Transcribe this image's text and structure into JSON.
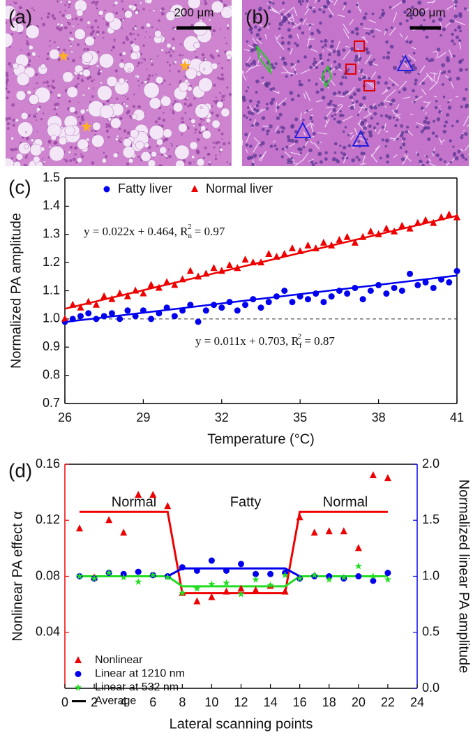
{
  "panels": [
    {
      "label": "(a)",
      "scale_bar": "200 μm"
    },
    {
      "label": "(b)",
      "scale_bar": "200 μm"
    }
  ],
  "chart_data": [
    {
      "type": "scatter",
      "panel_label": "(c)",
      "xlabel": "Temperature (°C)",
      "ylabel": "Normalized PA amplitude",
      "x": [
        26,
        26.3,
        26.6,
        26.9,
        27.2,
        27.5,
        27.8,
        28.1,
        28.4,
        28.7,
        29,
        29.3,
        29.6,
        29.9,
        30.2,
        30.5,
        30.8,
        31.1,
        31.4,
        31.7,
        32,
        32.3,
        32.6,
        32.9,
        33.2,
        33.5,
        33.8,
        34.1,
        34.4,
        34.7,
        35,
        35.3,
        35.6,
        35.9,
        36.2,
        36.5,
        36.8,
        37.1,
        37.4,
        37.7,
        38,
        38.3,
        38.6,
        38.9,
        39.2,
        39.5,
        39.8,
        40.1,
        40.4,
        40.7,
        41
      ],
      "xlim": [
        26,
        41
      ],
      "xticks": [
        26,
        29,
        32,
        35,
        38,
        41
      ],
      "ylim": [
        0.7,
        1.5
      ],
      "yticks": [
        0.7,
        0.8,
        0.9,
        {
          "value": 1,
          "label": "1.0"
        },
        1.1,
        1.2,
        1.3,
        1.4,
        1.5
      ],
      "reference_line": {
        "value": 1,
        "dashed": true
      },
      "legend": "top-left",
      "series": [
        {
          "name": "Fatty liver",
          "color": "#0000ee",
          "marker": "circle",
          "values": [
            0.99,
            1.0,
            1.01,
            1.02,
            1.0,
            1.01,
            1.02,
            1.0,
            1.03,
            1.01,
            1.03,
            1.0,
            1.02,
            1.04,
            1.01,
            1.03,
            1.05,
            0.99,
            1.03,
            1.05,
            1.04,
            1.06,
            1.03,
            1.05,
            1.07,
            1.04,
            1.06,
            1.08,
            1.1,
            1.06,
            1.08,
            1.07,
            1.09,
            1.06,
            1.08,
            1.1,
            1.09,
            1.11,
            1.07,
            1.1,
            1.12,
            1.09,
            1.11,
            1.1,
            1.16,
            1.12,
            1.13,
            1.11,
            1.14,
            1.13,
            1.17
          ]
        },
        {
          "name": "Normal liver",
          "color": "#ee0000",
          "marker": "triangle",
          "values": [
            1.0,
            1.05,
            1.04,
            1.06,
            1.05,
            1.08,
            1.07,
            1.09,
            1.08,
            1.1,
            1.09,
            1.12,
            1.11,
            1.13,
            1.12,
            1.14,
            1.17,
            1.15,
            1.16,
            1.18,
            1.17,
            1.19,
            1.18,
            1.21,
            1.2,
            1.2,
            1.23,
            1.22,
            1.23,
            1.25,
            1.24,
            1.26,
            1.25,
            1.27,
            1.26,
            1.28,
            1.29,
            1.27,
            1.29,
            1.31,
            1.3,
            1.32,
            1.31,
            1.33,
            1.32,
            1.34,
            1.35,
            1.34,
            1.36,
            1.37,
            1.36
          ]
        }
      ],
      "fits": [
        {
          "color": "#ee0000",
          "x": [
            26,
            41
          ],
          "values": [
            1.036,
            1.366
          ],
          "label": {
            "text": "y = 0.022x + 0.464, R",
            "sub": "n",
            "sup": "2",
            "tail": " = 0.97"
          }
        },
        {
          "color": "#0000ee",
          "x": [
            26,
            41
          ],
          "values": [
            0.989,
            1.154
          ],
          "label": {
            "text": "y = 0.011x + 0.703, R",
            "sub": "f",
            "sup": "2",
            "tail": " = 0.87"
          }
        }
      ]
    },
    {
      "type": "scatter",
      "panel_label": "(d)",
      "xlabel": "Lateral scanning points",
      "ylabel": "Nonlinear PA effect α",
      "y2label": "Normalized linear PA amplitude",
      "ylabel_color": "#ee0000",
      "y2label_color": "#0000ee",
      "x": [
        1,
        2,
        3,
        4,
        5,
        6,
        7,
        8,
        9,
        10,
        11,
        12,
        13,
        14,
        15,
        16,
        17,
        18,
        19,
        20,
        21,
        22
      ],
      "xlim": [
        0,
        24
      ],
      "xticks": [
        0,
        2,
        4,
        6,
        8,
        10,
        12,
        14,
        16,
        18,
        20,
        22,
        24
      ],
      "ylim": [
        0,
        0.16
      ],
      "yticks": [
        0.04,
        0.08,
        0.12,
        0.16
      ],
      "y2lim": [
        0,
        2
      ],
      "y2ticks": [
        {
          "value": 0,
          "label": "0.0"
        },
        0.5,
        {
          "value": 1,
          "label": "1.0"
        },
        1.5,
        {
          "value": 2,
          "label": "2.0"
        }
      ],
      "annotations": [
        "Normal",
        "Fatty",
        "Normal"
      ],
      "legend": "bottom-left",
      "average_label": "Average",
      "average_color": "#000000",
      "series": [
        {
          "name": "Nonlinear",
          "color": "#ee0000",
          "marker": "triangle",
          "values": [
            0.114,
            0.079,
            0.12,
            0.111,
            0.138,
            0.138,
            0.13,
            0.068,
            0.062,
            0.065,
            0.069,
            0.071,
            0.07,
            0.073,
            0.069,
            0.122,
            0.111,
            0.112,
            0.112,
            0.1,
            0.152,
            0.15
          ],
          "average": [
            0.126,
            0.126,
            0.126,
            0.126,
            0.126,
            0.126,
            0.126,
            0.068,
            0.068,
            0.068,
            0.068,
            0.068,
            0.068,
            0.068,
            0.068,
            0.126,
            0.126,
            0.126,
            0.126,
            0.126,
            0.126,
            0.126
          ]
        },
        {
          "name": "Linear  at 1210 nm",
          "color": "#0000ee",
          "marker": "circle",
          "axis": "y2",
          "values": [
            1.0,
            0.98,
            1.03,
            1.02,
            1.04,
            1.01,
            1.0,
            1.08,
            1.05,
            1.14,
            1.05,
            1.11,
            1.02,
            1.02,
            1.03,
            0.98,
            1.0,
            1.0,
            0.98,
            1.0,
            0.96,
            1.03
          ],
          "average": [
            1.0,
            1.0,
            1.0,
            1.0,
            1.0,
            1.0,
            1.0,
            1.07,
            1.07,
            1.07,
            1.07,
            1.07,
            1.07,
            1.07,
            1.07,
            1.0,
            1.0,
            1.0,
            1.0,
            1.0,
            1.0,
            1.0
          ]
        },
        {
          "name": "Linear at 532 nm",
          "color": "#22dd22",
          "marker": "star",
          "axis": "y2",
          "values": [
            1.0,
            0.98,
            1.03,
            0.99,
            0.95,
            1.01,
            0.99,
            0.85,
            0.89,
            0.93,
            0.94,
            0.84,
            0.97,
            0.92,
            1.01,
            0.98,
            1.01,
            0.97,
            0.99,
            1.09,
            1.0,
            0.97
          ],
          "average": [
            1.0,
            1.0,
            1.0,
            1.0,
            1.0,
            1.0,
            1.0,
            0.91,
            0.91,
            0.91,
            0.91,
            0.91,
            0.91,
            0.91,
            0.91,
            1.0,
            1.0,
            1.0,
            1.0,
            1.0,
            1.0,
            1.0
          ]
        }
      ]
    }
  ]
}
